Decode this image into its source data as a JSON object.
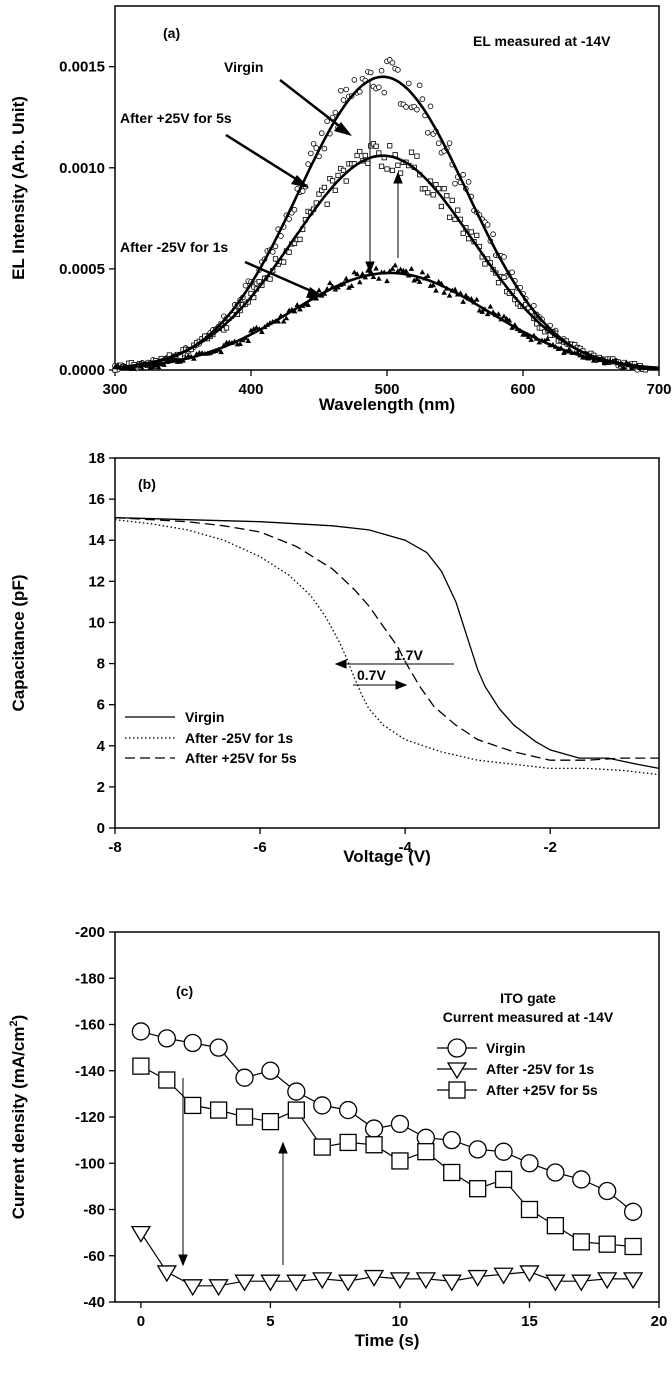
{
  "chart_data": [
    {
      "id": "a",
      "type": "scatter",
      "panel_label": "(a)",
      "annotation": "EL measured at -14V",
      "xlabel": "Wavelength (nm)",
      "ylabel": "EL Intensity (Arb. Unit)",
      "xlim": [
        300,
        700
      ],
      "ylim": [
        0,
        0.0018
      ],
      "xticks": [
        300,
        400,
        500,
        600,
        700
      ],
      "xtick_labels": [
        "300",
        "400",
        "500",
        "600",
        "700"
      ],
      "yticks": [
        0,
        0.0005,
        0.001,
        0.0015
      ],
      "ytick_labels": [
        "0.0000",
        "0.0005",
        "0.0010",
        "0.0015"
      ],
      "series": [
        {
          "name": "Virgin",
          "marker": "circle",
          "fit": {
            "peak": 0.00145,
            "center": 497,
            "sigma": 62
          }
        },
        {
          "name": "After +25V for 5s",
          "marker": "square",
          "fit": {
            "peak": 0.00106,
            "center": 497,
            "sigma": 66
          }
        },
        {
          "name": "After -25V for 1s",
          "marker": "triangle",
          "fit": {
            "peak": 0.00048,
            "center": 502,
            "sigma": 72
          }
        }
      ],
      "labels": [
        "Virgin",
        "After +25V for 5s",
        "After -25V for 1s"
      ]
    },
    {
      "id": "b",
      "type": "line",
      "panel_label": "(b)",
      "xlabel": "Voltage (V)",
      "ylabel": "Capacitance (pF)",
      "xlim": [
        -8,
        -0.5
      ],
      "ylim": [
        0,
        18
      ],
      "xticks": [
        -8,
        -6,
        -4,
        -2
      ],
      "xtick_labels": [
        "-8",
        "-6",
        "-4",
        "-2"
      ],
      "yticks": [
        0,
        2,
        4,
        6,
        8,
        10,
        12,
        14,
        16,
        18
      ],
      "ytick_labels": [
        "0",
        "2",
        "4",
        "6",
        "8",
        "10",
        "12",
        "14",
        "16",
        "18"
      ],
      "series": [
        {
          "name": "Virgin",
          "style": "solid",
          "x": [
            -8,
            -7,
            -6,
            -5,
            -4.5,
            -4,
            -3.7,
            -3.5,
            -3.3,
            -3.1,
            -3.0,
            -2.9,
            -2.7,
            -2.5,
            -2.2,
            -2.0,
            -1.6,
            -1.2,
            -0.8,
            -0.5
          ],
          "y": [
            15.1,
            15.0,
            14.9,
            14.7,
            14.5,
            14.0,
            13.4,
            12.5,
            11.0,
            8.8,
            7.7,
            6.9,
            5.8,
            5.0,
            4.2,
            3.8,
            3.4,
            3.4,
            3.1,
            2.9
          ]
        },
        {
          "name": "After -25V for 1s",
          "style": "dotted",
          "x": [
            -8,
            -7.5,
            -7,
            -6.5,
            -6,
            -5.6,
            -5.3,
            -5.1,
            -4.9,
            -4.8,
            -4.7,
            -4.6,
            -4.5,
            -4.3,
            -4.0,
            -3.5,
            -3.0,
            -2.5,
            -2.0,
            -1.5,
            -1.0,
            -0.5
          ],
          "y": [
            15.0,
            14.8,
            14.5,
            14.0,
            13.2,
            12.3,
            11.3,
            10.3,
            9.0,
            8.2,
            7.3,
            6.5,
            5.8,
            5.0,
            4.3,
            3.7,
            3.3,
            3.1,
            2.9,
            2.9,
            2.8,
            2.6
          ]
        },
        {
          "name": "After +25V for 5s",
          "style": "dashed",
          "x": [
            -8,
            -7,
            -6.5,
            -6,
            -5.5,
            -5.0,
            -4.7,
            -4.5,
            -4.3,
            -4.1,
            -4.0,
            -3.8,
            -3.6,
            -3.3,
            -3.0,
            -2.5,
            -2.0,
            -1.5,
            -1.0,
            -0.5
          ],
          "y": [
            15.1,
            14.9,
            14.7,
            14.4,
            13.7,
            12.6,
            11.6,
            10.8,
            9.8,
            8.8,
            8.1,
            6.9,
            5.9,
            5.0,
            4.3,
            3.7,
            3.3,
            3.3,
            3.4,
            3.4
          ]
        }
      ],
      "annotations": [
        "1.7V",
        "0.7V"
      ]
    },
    {
      "id": "c",
      "type": "line",
      "panel_label": "(c)",
      "legend_title": [
        "ITO gate",
        "Current measured at -14V"
      ],
      "xlabel": "Time (s)",
      "ylabel": "Current density (mA/cm²)",
      "xlim": [
        -1,
        20
      ],
      "ylim": [
        -40,
        -200
      ],
      "xticks": [
        0,
        5,
        10,
        15,
        20
      ],
      "xtick_labels": [
        "0",
        "5",
        "10",
        "15",
        "20"
      ],
      "yticks": [
        -40,
        -60,
        -80,
        -100,
        -120,
        -140,
        -160,
        -180,
        -200
      ],
      "ytick_labels": [
        "-40",
        "-60",
        "-80",
        "-100",
        "-120",
        "-140",
        "-160",
        "-180",
        "-200"
      ],
      "legend_position": "top-right",
      "series": [
        {
          "name": "Virgin",
          "marker": "circle",
          "x": [
            0,
            1,
            2,
            3,
            4,
            5,
            6,
            7,
            8,
            9,
            10,
            11,
            12,
            13,
            14,
            15,
            16,
            17,
            18,
            19
          ],
          "y": [
            -157,
            -154,
            -152,
            -150,
            -137,
            -140,
            -131,
            -125,
            -123,
            -115,
            -117,
            -111,
            -110,
            -106,
            -105,
            -100,
            -96,
            -93,
            -88,
            -79
          ]
        },
        {
          "name": "After -25V for 1s",
          "marker": "triangle-down",
          "x": [
            0,
            1,
            2,
            3,
            4,
            5,
            6,
            7,
            8,
            9,
            10,
            11,
            12,
            13,
            14,
            15,
            16,
            17,
            18,
            19
          ],
          "y": [
            -70,
            -53,
            -47,
            -47,
            -49,
            -49,
            -49,
            -50,
            -49,
            -51,
            -50,
            -50,
            -49,
            -51,
            -52,
            -53,
            -49,
            -49,
            -50,
            -50
          ]
        },
        {
          "name": "After +25V for 5s",
          "marker": "square",
          "x": [
            0,
            1,
            2,
            3,
            4,
            5,
            6,
            7,
            8,
            9,
            10,
            11,
            12,
            13,
            14,
            15,
            16,
            17,
            18,
            19
          ],
          "y": [
            -142,
            -136,
            -125,
            -123,
            -120,
            -118,
            -123,
            -107,
            -109,
            -108,
            -101,
            -105,
            -96,
            -89,
            -93,
            -80,
            -73,
            -66,
            -65,
            -64
          ]
        }
      ]
    }
  ]
}
